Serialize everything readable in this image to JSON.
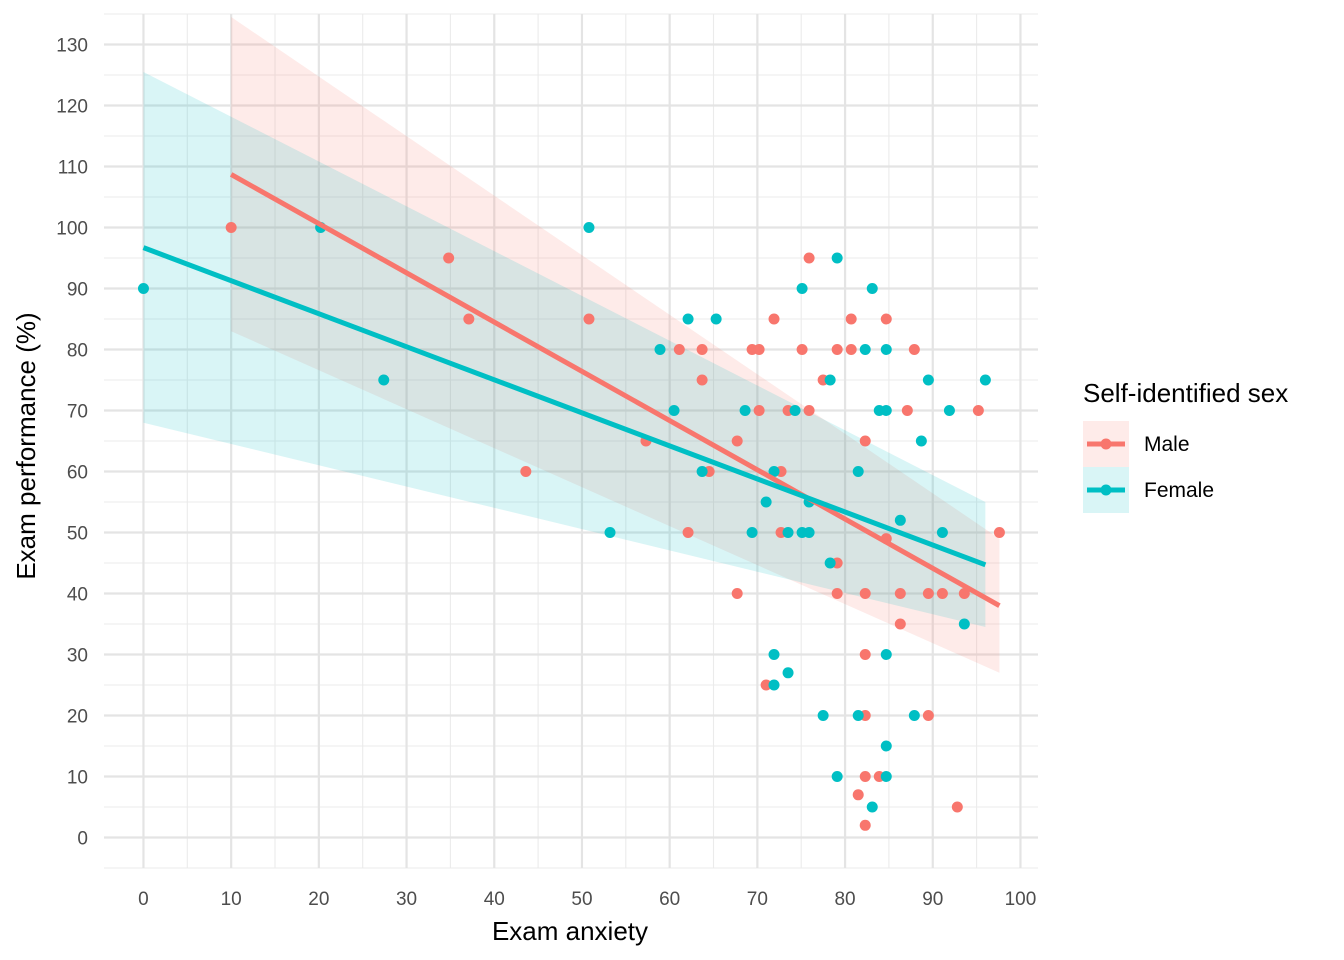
{
  "chart_data": {
    "type": "scatter",
    "xlabel": "Exam anxiety",
    "ylabel": "Exam performance (%)",
    "xlim": [
      -4.5,
      102
    ],
    "ylim": [
      -5,
      135
    ],
    "x_ticks": [
      0,
      10,
      20,
      30,
      40,
      50,
      60,
      70,
      80,
      90,
      100
    ],
    "y_ticks": [
      0,
      10,
      20,
      30,
      40,
      50,
      60,
      70,
      80,
      90,
      100,
      110,
      120,
      130
    ],
    "x_tick_labels": [
      "0",
      "10",
      "20",
      "30",
      "40",
      "50",
      "60",
      "70",
      "80",
      "90",
      "100"
    ],
    "y_tick_labels": [
      "0",
      "10",
      "20",
      "30",
      "40",
      "50",
      "60",
      "70",
      "80",
      "90",
      "100",
      "110",
      "120",
      "130"
    ],
    "grid": true,
    "legend": {
      "title": "Self-identified sex",
      "position": "right",
      "entries": [
        "Male",
        "Female"
      ]
    },
    "series": [
      {
        "name": "Male",
        "color": "#F8766D",
        "points": [
          [
            10,
            100
          ],
          [
            34.8,
            95
          ],
          [
            37.1,
            85
          ],
          [
            43.6,
            60
          ],
          [
            50.8,
            85
          ],
          [
            57.3,
            65
          ],
          [
            61.1,
            80
          ],
          [
            62.1,
            50
          ],
          [
            63.7,
            75
          ],
          [
            63.7,
            80
          ],
          [
            64.5,
            60
          ],
          [
            67.7,
            65
          ],
          [
            67.7,
            40
          ],
          [
            69.4,
            80
          ],
          [
            70.2,
            80
          ],
          [
            70.2,
            70
          ],
          [
            71,
            25
          ],
          [
            71.9,
            85
          ],
          [
            72.7,
            60
          ],
          [
            72.7,
            50
          ],
          [
            73.5,
            70
          ],
          [
            75.1,
            80
          ],
          [
            75.9,
            95
          ],
          [
            75.9,
            70
          ],
          [
            77.5,
            75
          ],
          [
            79.1,
            80
          ],
          [
            79.1,
            45
          ],
          [
            79.1,
            40
          ],
          [
            80.7,
            85
          ],
          [
            80.7,
            80
          ],
          [
            81.5,
            7
          ],
          [
            82.3,
            65
          ],
          [
            82.3,
            40
          ],
          [
            82.3,
            30
          ],
          [
            82.3,
            20
          ],
          [
            82.3,
            10
          ],
          [
            82.3,
            2
          ],
          [
            83.9,
            10
          ],
          [
            84.7,
            85
          ],
          [
            84.7,
            49
          ],
          [
            86.3,
            40
          ],
          [
            86.3,
            35
          ],
          [
            87.1,
            70
          ],
          [
            87.9,
            80
          ],
          [
            89.5,
            40
          ],
          [
            89.5,
            20
          ],
          [
            91.1,
            40
          ],
          [
            92.8,
            5
          ],
          [
            93.6,
            40
          ],
          [
            95.2,
            70
          ],
          [
            97.6,
            50
          ]
        ],
        "fit": {
          "x": [
            10,
            97.6
          ],
          "y": [
            108.7,
            38
          ],
          "ci_lower": [
            83,
            27
          ],
          "ci_upper": [
            134.5,
            49
          ]
        }
      },
      {
        "name": "Female",
        "color": "#00BFC4",
        "points": [
          [
            0,
            90
          ],
          [
            20.2,
            100
          ],
          [
            27.4,
            75
          ],
          [
            50.8,
            100
          ],
          [
            53.2,
            50
          ],
          [
            58.9,
            80
          ],
          [
            60.5,
            70
          ],
          [
            62.1,
            85
          ],
          [
            63.7,
            60
          ],
          [
            65.3,
            85
          ],
          [
            68.6,
            70
          ],
          [
            69.4,
            50
          ],
          [
            71,
            55
          ],
          [
            71.9,
            60
          ],
          [
            71.9,
            30
          ],
          [
            71.9,
            25
          ],
          [
            73.5,
            50
          ],
          [
            73.5,
            27
          ],
          [
            74.3,
            70
          ],
          [
            75.1,
            90
          ],
          [
            75.1,
            50
          ],
          [
            75.9,
            55
          ],
          [
            75.9,
            50
          ],
          [
            77.5,
            20
          ],
          [
            78.3,
            75
          ],
          [
            78.3,
            45
          ],
          [
            79.1,
            95
          ],
          [
            79.1,
            10
          ],
          [
            81.5,
            60
          ],
          [
            81.5,
            20
          ],
          [
            82.3,
            80
          ],
          [
            83.1,
            90
          ],
          [
            83.1,
            5
          ],
          [
            83.9,
            70
          ],
          [
            84.7,
            80
          ],
          [
            84.7,
            70
          ],
          [
            84.7,
            30
          ],
          [
            84.7,
            15
          ],
          [
            84.7,
            10
          ],
          [
            86.3,
            52
          ],
          [
            87.9,
            20
          ],
          [
            88.7,
            65
          ],
          [
            89.5,
            75
          ],
          [
            91.1,
            50
          ],
          [
            91.9,
            70
          ],
          [
            93.6,
            35
          ],
          [
            96,
            75
          ]
        ],
        "fit": {
          "x": [
            0,
            96
          ],
          "y": [
            96.7,
            44.7
          ],
          "ci_lower": [
            68,
            34.5
          ],
          "ci_upper": [
            125.5,
            55
          ]
        }
      }
    ]
  }
}
